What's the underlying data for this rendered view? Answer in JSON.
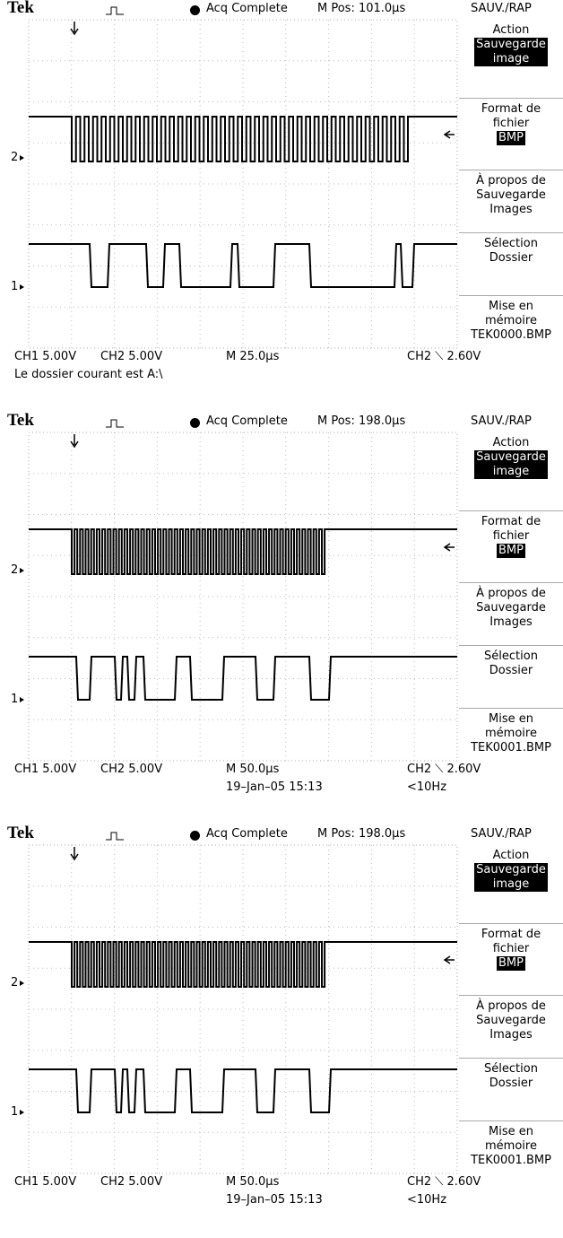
{
  "caption": "Le dossier courant est A:\\",
  "screens": [
    {
      "header": {
        "brand": "Tek",
        "status": "Acq Complete",
        "position": "M Pos: 101.0µs",
        "menu_title": "SAUV./RAP"
      },
      "menu": [
        {
          "label": [
            "Action"
          ],
          "value": [
            "Sauvegarde",
            "image"
          ]
        },
        {
          "label": [
            "Format de",
            "fichier"
          ],
          "value": [
            "BMP"
          ]
        },
        {
          "label": [
            "À propos de",
            "Sauvegarde",
            "Images"
          ]
        },
        {
          "label": [
            "Sélection",
            "Dossier"
          ]
        },
        {
          "label": [
            "Mise en",
            "mémoire",
            "TEK0000.BMP"
          ]
        }
      ],
      "markers": [
        "2",
        "1"
      ],
      "footer": {
        "ch1": "CH1  5.00V",
        "ch2": "CH2  5.00V",
        "timebase": "M 25.0µs",
        "trigger": "CH2 ⟍ 2.60V"
      }
    },
    {
      "header": {
        "brand": "Tek",
        "status": "Acq Complete",
        "position": "M Pos: 198.0µs",
        "menu_title": "SAUV./RAP"
      },
      "menu": [
        {
          "label": [
            "Action"
          ],
          "value": [
            "Sauvegarde",
            "image"
          ]
        },
        {
          "label": [
            "Format de",
            "fichier"
          ],
          "value": [
            "BMP"
          ]
        },
        {
          "label": [
            "À propos de",
            "Sauvegarde",
            "Images"
          ]
        },
        {
          "label": [
            "Sélection",
            "Dossier"
          ]
        },
        {
          "label": [
            "Mise en",
            "mémoire",
            "TEK0001.BMP"
          ]
        }
      ],
      "markers": [
        "2",
        "1"
      ],
      "footer": {
        "ch1": "CH1  5.00V",
        "ch2": "CH2  5.00V",
        "timebase": "M 50.0µs",
        "trigger": "CH2 ⟍ 2.60V",
        "date": "19–Jan–05 15:13",
        "frequency": "<10Hz"
      }
    },
    {
      "header": {
        "brand": "Tek",
        "status": "Acq Complete",
        "position": "M Pos: 198.0µs",
        "menu_title": "SAUV./RAP"
      },
      "menu": [
        {
          "label": [
            "Action"
          ],
          "value": [
            "Sauvegarde",
            "image"
          ]
        },
        {
          "label": [
            "Format de",
            "fichier"
          ],
          "value": [
            "BMP"
          ]
        },
        {
          "label": [
            "À propos de",
            "Sauvegarde",
            "Images"
          ]
        },
        {
          "label": [
            "Sélection",
            "Dossier"
          ]
        },
        {
          "label": [
            "Mise en",
            "mémoire",
            "TEK0001.BMP"
          ]
        }
      ],
      "markers": [
        "2",
        "1"
      ],
      "footer": {
        "ch1": "CH1  5.00V",
        "ch2": "CH2  5.00V",
        "timebase": "M 50.0µs",
        "trigger": "CH2 ⟍ 2.60V",
        "date": "19–Jan–05 15:13",
        "frequency": "<10Hz"
      }
    }
  ]
}
